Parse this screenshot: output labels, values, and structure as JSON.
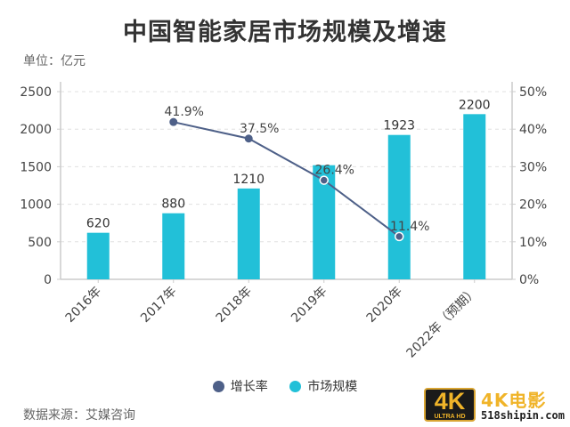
{
  "header": {
    "title": "中国智能家居市场规模及增速",
    "unit": "单位：亿元"
  },
  "footer": {
    "source": "数据来源：艾媒咨询"
  },
  "legend": [
    {
      "label": "增长率",
      "color": "#4e6088"
    },
    {
      "label": "市场规模",
      "color": "#22c0d8"
    }
  ],
  "watermark": {
    "badge_main": "4K",
    "badge_sub": "ULTRA HD",
    "brand": "4K电影",
    "site": "518shipin.com"
  },
  "colors": {
    "bar": "#22c0d8",
    "line": "#4e6088",
    "grid": "#e0e0e0",
    "axis": "#cccccc",
    "text": "#333333"
  },
  "chart_data": {
    "type": "bar+line",
    "title": "中国智能家居市场规模及增速",
    "ylabel": "单位：亿元",
    "categories": [
      "2016年",
      "2017年",
      "2018年",
      "2019年",
      "2020年",
      "2022年（预期）"
    ],
    "series": [
      {
        "name": "市场规模",
        "type": "bar",
        "axis": "left",
        "values": [
          620,
          880,
          1210,
          1520,
          1923,
          2200
        ],
        "labels": [
          "620",
          "880",
          "1210",
          "",
          "1923",
          "2200"
        ]
      },
      {
        "name": "增长率",
        "type": "line",
        "axis": "right",
        "values": [
          null,
          41.9,
          37.5,
          26.4,
          11.4,
          null
        ],
        "labels": [
          "",
          "41.9%",
          "37.5%",
          "26.4%",
          "11.4%",
          ""
        ]
      }
    ],
    "left_axis": {
      "ylim": [
        0,
        2500
      ],
      "ticks": [
        "0",
        "500",
        "1000",
        "1500",
        "2000",
        "2500"
      ]
    },
    "right_axis": {
      "ylim": [
        0,
        50
      ],
      "ticks": [
        "0%",
        "10%",
        "20%",
        "30%",
        "40%",
        "50%"
      ]
    },
    "grid": true,
    "legend_position": "bottom"
  }
}
